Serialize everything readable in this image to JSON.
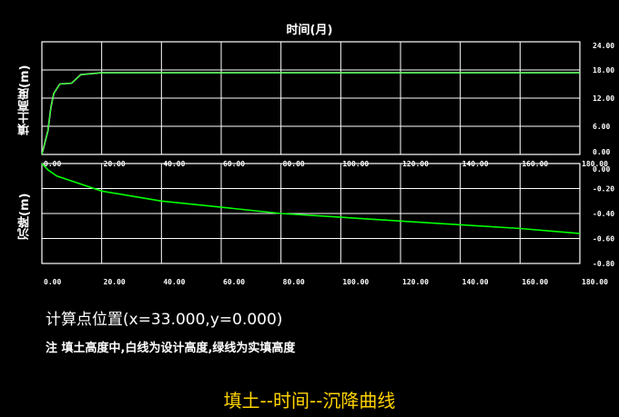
{
  "page": {
    "top_title": "时间(月)",
    "calc_position": "计算点位置(x=33.000,y=0.000)",
    "note": "注   填土高度中,白线为设计高度,绿线为实填高度",
    "footer_title": "填土--时间--沉降曲线"
  },
  "colors": {
    "background": "#000000",
    "grid": "#ffffff",
    "actual_line": "#00ff00",
    "design_line": "#ffffff",
    "footer_text": "#ffd400"
  },
  "chart_data": [
    {
      "type": "line",
      "title": "",
      "xlabel": "时间(月)",
      "ylabel": "填土高度(m)",
      "xlim": [
        0,
        180
      ],
      "ylim": [
        0,
        24
      ],
      "x_ticks": [
        "0.00",
        "20.00",
        "40.00",
        "60.00",
        "80.00",
        "100.00",
        "120.00",
        "140.00",
        "160.00",
        "180.00"
      ],
      "y_ticks": [
        "24.00",
        "18.00",
        "12.00",
        "6.00",
        "0.00"
      ],
      "grid": true,
      "series": [
        {
          "color": "#00ff00",
          "points": [
            [
              0,
              0
            ],
            [
              2,
              5
            ],
            [
              3,
              10
            ],
            [
              4,
              13
            ],
            [
              6,
              15
            ],
            [
              10,
              15.2
            ],
            [
              13,
              17
            ],
            [
              20,
              17.4
            ],
            [
              180,
              17.4
            ]
          ]
        },
        {
          "color": "#ffffff",
          "points": [
            [
              0,
              0
            ],
            [
              2,
              5
            ],
            [
              3,
              10
            ],
            [
              4,
              13
            ],
            [
              6,
              15
            ],
            [
              10,
              15.2
            ],
            [
              13,
              17
            ],
            [
              20,
              17.4
            ],
            [
              180,
              17.4
            ]
          ]
        }
      ]
    },
    {
      "type": "line",
      "title": "",
      "xlabel": "",
      "ylabel": "沉降(m)",
      "xlim": [
        0,
        180
      ],
      "ylim": [
        -0.8,
        0
      ],
      "x_ticks": [
        "0.00",
        "20.00",
        "40.00",
        "60.00",
        "80.00",
        "100.00",
        "120.00",
        "140.00",
        "160.00",
        "180.00"
      ],
      "y_ticks": [
        "0.00",
        "-0.20",
        "-0.40",
        "-0.60",
        "-0.80"
      ],
      "grid": true,
      "series": [
        {
          "color": "#00ff00",
          "points": [
            [
              0,
              0
            ],
            [
              2,
              -0.05
            ],
            [
              5,
              -0.1
            ],
            [
              10,
              -0.14
            ],
            [
              20,
              -0.22
            ],
            [
              30,
              -0.26
            ],
            [
              40,
              -0.3
            ],
            [
              60,
              -0.35
            ],
            [
              80,
              -0.4
            ],
            [
              100,
              -0.43
            ],
            [
              120,
              -0.46
            ],
            [
              140,
              -0.49
            ],
            [
              160,
              -0.52
            ],
            [
              180,
              -0.56
            ]
          ]
        }
      ]
    }
  ]
}
